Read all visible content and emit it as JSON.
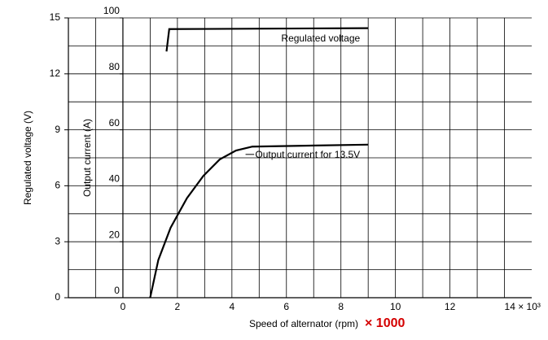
{
  "chart_data": {
    "type": "line",
    "ylabel": "Regulated voltage (V)",
    "y2label": "Output current (A)",
    "xlabel": "Speed of alternator (rpm)",
    "xlabel_suffix": "× 1000",
    "xlim": [
      -2,
      15
    ],
    "xticks": [
      0,
      2,
      4,
      6,
      8,
      10,
      12,
      {
        "value": 14,
        "label": "14 × 10³"
      }
    ],
    "xgrid": [
      -1,
      1,
      3,
      5,
      7,
      9,
      11,
      13
    ],
    "ylim": [
      0,
      15
    ],
    "yticks": [
      0,
      3,
      6,
      9,
      12,
      15
    ],
    "ygrid": [
      1.5,
      4.5,
      7.5,
      10.5,
      13.5
    ],
    "y2lim": [
      0,
      100
    ],
    "y2ticks": [
      0,
      20,
      40,
      60,
      80,
      100
    ],
    "grid": true,
    "series": [
      {
        "name": "Regulated voltage",
        "color": "#000000",
        "x": [
          1.6,
          1.7,
          9.0
        ],
        "values": [
          13.2,
          14.4,
          14.45
        ]
      },
      {
        "name": "Output current for 13.5V",
        "color": "#000000",
        "axis": "y2",
        "x": [
          1.0,
          1.3,
          1.75,
          2.35,
          2.95,
          3.55,
          4.15,
          4.75,
          9.0
        ],
        "values": [
          0,
          13.5,
          25,
          35.6,
          43.5,
          49.4,
          52.6,
          54,
          54.7
        ]
      }
    ]
  }
}
